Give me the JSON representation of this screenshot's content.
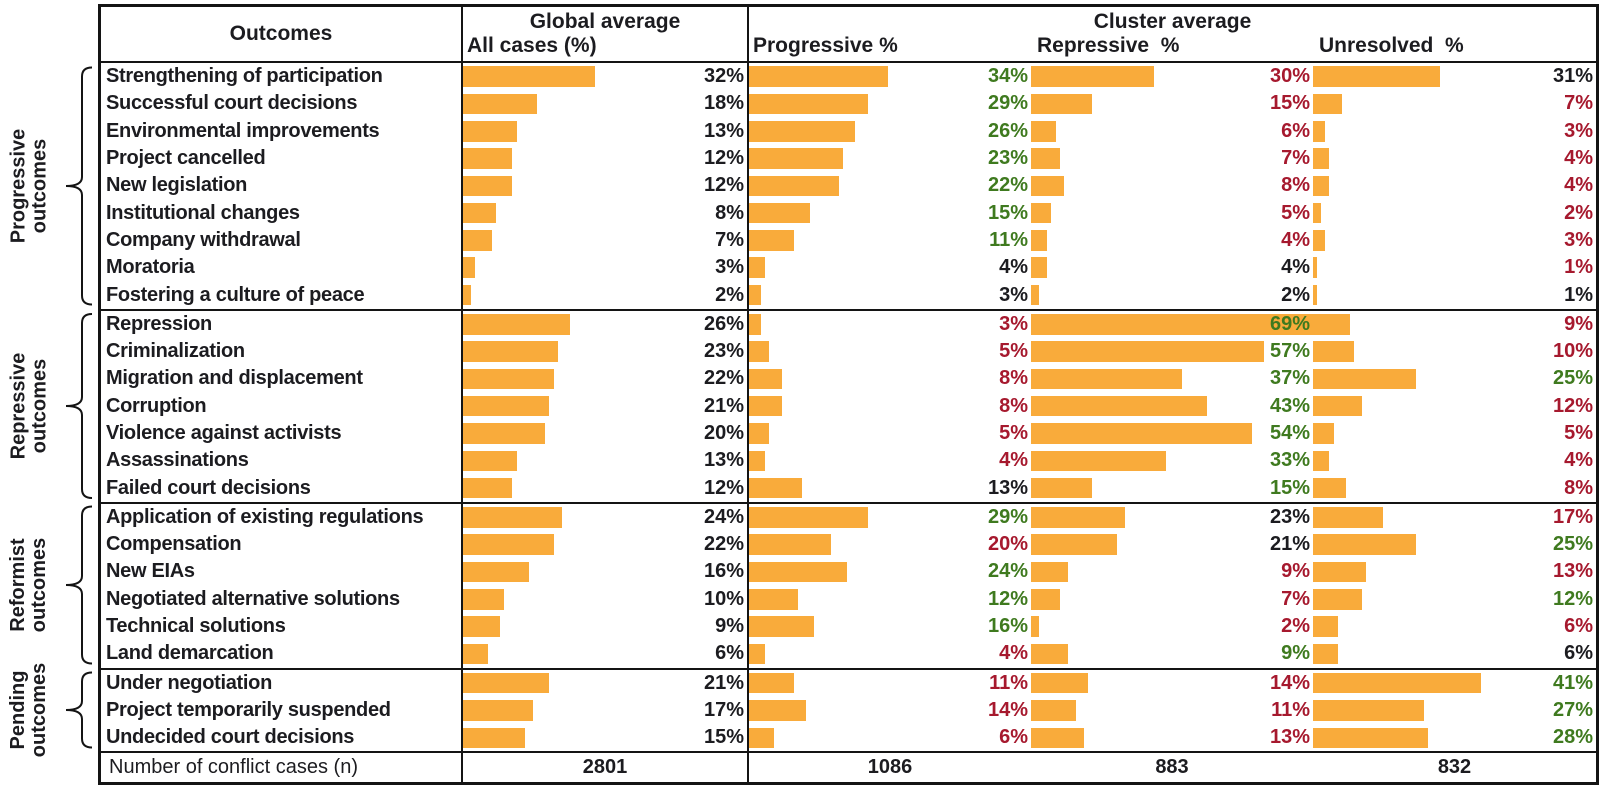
{
  "chart_data": {
    "type": "bar",
    "orientation": "horizontal",
    "unit": "%",
    "bar_axis_max_percent": 69,
    "colors": {
      "bar": "#F9AB3B",
      "green": "#3F7A1F",
      "red": "#A6192E",
      "text": "#1c1c20",
      "border": "#141414"
    },
    "column_headers": {
      "outcomes": "Outcomes",
      "global_group": "Global average",
      "all_cases": "All cases (%)",
      "cluster_group": "Cluster average",
      "progressive": "Progressive %",
      "repressive": "Repressive  %",
      "unresolved": "Unresolved  %"
    },
    "groups": [
      {
        "group": "Progressive outcomes",
        "rows": [
          {
            "outcome": "Strengthening of participation",
            "global": 32,
            "progressive": {
              "v": 34,
              "c": "green"
            },
            "repressive": {
              "v": 30,
              "c": "red"
            },
            "unresolved": {
              "v": 31,
              "c": "black"
            }
          },
          {
            "outcome": "Successful court decisions",
            "global": 18,
            "progressive": {
              "v": 29,
              "c": "green"
            },
            "repressive": {
              "v": 15,
              "c": "red"
            },
            "unresolved": {
              "v": 7,
              "c": "red"
            }
          },
          {
            "outcome": "Environmental improvements",
            "global": 13,
            "progressive": {
              "v": 26,
              "c": "green"
            },
            "repressive": {
              "v": 6,
              "c": "red"
            },
            "unresolved": {
              "v": 3,
              "c": "red"
            }
          },
          {
            "outcome": "Project cancelled",
            "global": 12,
            "progressive": {
              "v": 23,
              "c": "green"
            },
            "repressive": {
              "v": 7,
              "c": "red"
            },
            "unresolved": {
              "v": 4,
              "c": "red"
            }
          },
          {
            "outcome": "New legislation",
            "global": 12,
            "progressive": {
              "v": 22,
              "c": "green"
            },
            "repressive": {
              "v": 8,
              "c": "red"
            },
            "unresolved": {
              "v": 4,
              "c": "red"
            }
          },
          {
            "outcome": "Institutional changes",
            "global": 8,
            "progressive": {
              "v": 15,
              "c": "green"
            },
            "repressive": {
              "v": 5,
              "c": "red"
            },
            "unresolved": {
              "v": 2,
              "c": "red"
            }
          },
          {
            "outcome": "Company withdrawal",
            "global": 7,
            "progressive": {
              "v": 11,
              "c": "green"
            },
            "repressive": {
              "v": 4,
              "c": "red"
            },
            "unresolved": {
              "v": 3,
              "c": "red"
            }
          },
          {
            "outcome": "Moratoria",
            "global": 3,
            "progressive": {
              "v": 4,
              "c": "black"
            },
            "repressive": {
              "v": 4,
              "c": "black"
            },
            "unresolved": {
              "v": 1,
              "c": "red"
            }
          },
          {
            "outcome": "Fostering a culture of peace",
            "global": 2,
            "progressive": {
              "v": 3,
              "c": "black"
            },
            "repressive": {
              "v": 2,
              "c": "black"
            },
            "unresolved": {
              "v": 1,
              "c": "black"
            }
          }
        ]
      },
      {
        "group": "Repressive outcomes",
        "rows": [
          {
            "outcome": "Repression",
            "global": 26,
            "progressive": {
              "v": 3,
              "c": "red"
            },
            "repressive": {
              "v": 69,
              "c": "green"
            },
            "unresolved": {
              "v": 9,
              "c": "red"
            }
          },
          {
            "outcome": "Criminalization",
            "global": 23,
            "progressive": {
              "v": 5,
              "c": "red"
            },
            "repressive": {
              "v": 57,
              "c": "green"
            },
            "unresolved": {
              "v": 10,
              "c": "red"
            }
          },
          {
            "outcome": "Migration and displacement",
            "global": 22,
            "progressive": {
              "v": 8,
              "c": "red"
            },
            "repressive": {
              "v": 37,
              "c": "green"
            },
            "unresolved": {
              "v": 25,
              "c": "green"
            }
          },
          {
            "outcome": "Corruption",
            "global": 21,
            "progressive": {
              "v": 8,
              "c": "red"
            },
            "repressive": {
              "v": 43,
              "c": "green"
            },
            "unresolved": {
              "v": 12,
              "c": "red"
            }
          },
          {
            "outcome": "Violence against activists",
            "global": 20,
            "progressive": {
              "v": 5,
              "c": "red"
            },
            "repressive": {
              "v": 54,
              "c": "green"
            },
            "unresolved": {
              "v": 5,
              "c": "red"
            }
          },
          {
            "outcome": "Assassinations",
            "global": 13,
            "progressive": {
              "v": 4,
              "c": "red"
            },
            "repressive": {
              "v": 33,
              "c": "green"
            },
            "unresolved": {
              "v": 4,
              "c": "red"
            }
          },
          {
            "outcome": "Failed court decisions",
            "global": 12,
            "progressive": {
              "v": 13,
              "c": "black"
            },
            "repressive": {
              "v": 15,
              "c": "green"
            },
            "unresolved": {
              "v": 8,
              "c": "red"
            }
          }
        ]
      },
      {
        "group": "Reformist outcomes",
        "rows": [
          {
            "outcome": "Application of existing regulations",
            "global": 24,
            "progressive": {
              "v": 29,
              "c": "green"
            },
            "repressive": {
              "v": 23,
              "c": "black"
            },
            "unresolved": {
              "v": 17,
              "c": "red"
            }
          },
          {
            "outcome": "Compensation",
            "global": 22,
            "progressive": {
              "v": 20,
              "c": "red"
            },
            "repressive": {
              "v": 21,
              "c": "black"
            },
            "unresolved": {
              "v": 25,
              "c": "green"
            }
          },
          {
            "outcome": "New EIAs",
            "global": 16,
            "progressive": {
              "v": 24,
              "c": "green"
            },
            "repressive": {
              "v": 9,
              "c": "red"
            },
            "unresolved": {
              "v": 13,
              "c": "red"
            }
          },
          {
            "outcome": "Negotiated alternative solutions",
            "global": 10,
            "progressive": {
              "v": 12,
              "c": "green"
            },
            "repressive": {
              "v": 7,
              "c": "red"
            },
            "unresolved": {
              "v": 12,
              "c": "green"
            }
          },
          {
            "outcome": "Technical solutions",
            "global": 9,
            "progressive": {
              "v": 16,
              "c": "green"
            },
            "repressive": {
              "v": 2,
              "c": "red"
            },
            "unresolved": {
              "v": 6,
              "c": "red"
            }
          },
          {
            "outcome": "Land demarcation",
            "global": 6,
            "progressive": {
              "v": 4,
              "c": "red"
            },
            "repressive": {
              "v": 9,
              "c": "green"
            },
            "unresolved": {
              "v": 6,
              "c": "black"
            }
          }
        ]
      },
      {
        "group": "Pending outcomes",
        "rows": [
          {
            "outcome": "Under negotiation",
            "global": 21,
            "progressive": {
              "v": 11,
              "c": "red"
            },
            "repressive": {
              "v": 14,
              "c": "red"
            },
            "unresolved": {
              "v": 41,
              "c": "green"
            }
          },
          {
            "outcome": "Project temporarily suspended",
            "global": 17,
            "progressive": {
              "v": 14,
              "c": "red"
            },
            "repressive": {
              "v": 11,
              "c": "red"
            },
            "unresolved": {
              "v": 27,
              "c": "green"
            }
          },
          {
            "outcome": "Undecided court decisions",
            "global": 15,
            "progressive": {
              "v": 6,
              "c": "red"
            },
            "repressive": {
              "v": 13,
              "c": "red"
            },
            "unresolved": {
              "v": 28,
              "c": "green"
            }
          }
        ]
      }
    ],
    "footer": {
      "label": "Number of conflict cases (n)",
      "all": "2801",
      "progressive": "1086",
      "repressive": "883",
      "unresolved": "832"
    }
  }
}
